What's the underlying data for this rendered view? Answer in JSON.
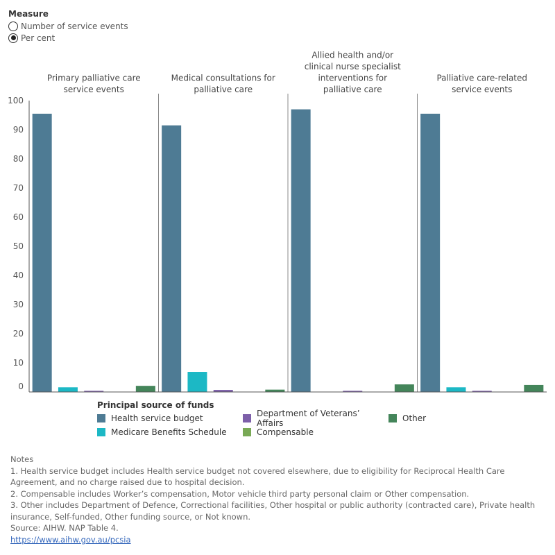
{
  "measure": {
    "title": "Measure",
    "options": [
      {
        "label": "Number of service events",
        "selected": false
      },
      {
        "label": "Per cent",
        "selected": true
      }
    ]
  },
  "chart_data": {
    "type": "bar",
    "panels": [
      "Primary palliative care service events",
      "Medical consultations for palliative care",
      "Allied health and/or clinical nurse specialist interventions for palliative care",
      "Palliative care-related service events"
    ],
    "series": [
      {
        "name": "Health service budget",
        "color": "#4e7b94",
        "values": [
          95.5,
          91.5,
          97.0,
          95.5
        ]
      },
      {
        "name": "Medicare Benefits Schedule",
        "color": "#1cb8c5",
        "values": [
          1.6,
          6.9,
          0,
          1.6
        ]
      },
      {
        "name": "Department of Veterans' Affairs",
        "color": "#7d5fa9",
        "values": [
          0.4,
          0.7,
          0.4,
          0.4
        ]
      },
      {
        "name": "Compensable",
        "color": "#79a955",
        "values": [
          0,
          0,
          0,
          0
        ]
      },
      {
        "name": "Other",
        "color": "#44855a",
        "values": [
          2.1,
          0.8,
          2.6,
          2.4
        ]
      }
    ],
    "ylim": [
      0,
      100
    ],
    "yticks": [
      0,
      10,
      20,
      30,
      40,
      50,
      60,
      70,
      80,
      90,
      100
    ],
    "legend_position": "bottom"
  },
  "legend": {
    "title": "Principal source of funds",
    "items": [
      {
        "label": "Health service budget",
        "color": "#4e7b94"
      },
      {
        "label": "Department of Veterans’ Affairs",
        "color": "#7d5fa9"
      },
      {
        "label": "Other",
        "color": "#44855a"
      },
      {
        "label": "Medicare Benefits Schedule",
        "color": "#1cb8c5"
      },
      {
        "label": "Compensable",
        "color": "#79a955"
      }
    ]
  },
  "notes": {
    "heading": "Notes",
    "lines": [
      "1. Health service budget includes Health service budget not covered elsewhere, due to eligibility for Reciprocal Health Care Agreement, and no charge raised due to hospital decision.",
      "2. Compensable includes Worker’s compensation, Motor vehicle third party personal claim or Other compensation.",
      "3. Other includes Department of Defence, Correctional facilities, Other hospital or public authority (contracted care), Private health insurance, Self-funded, Other funding source, or Not known."
    ],
    "source": "Source: AIHW. NAP Table 4.",
    "link": "https://www.aihw.gov.au/pcsia"
  }
}
